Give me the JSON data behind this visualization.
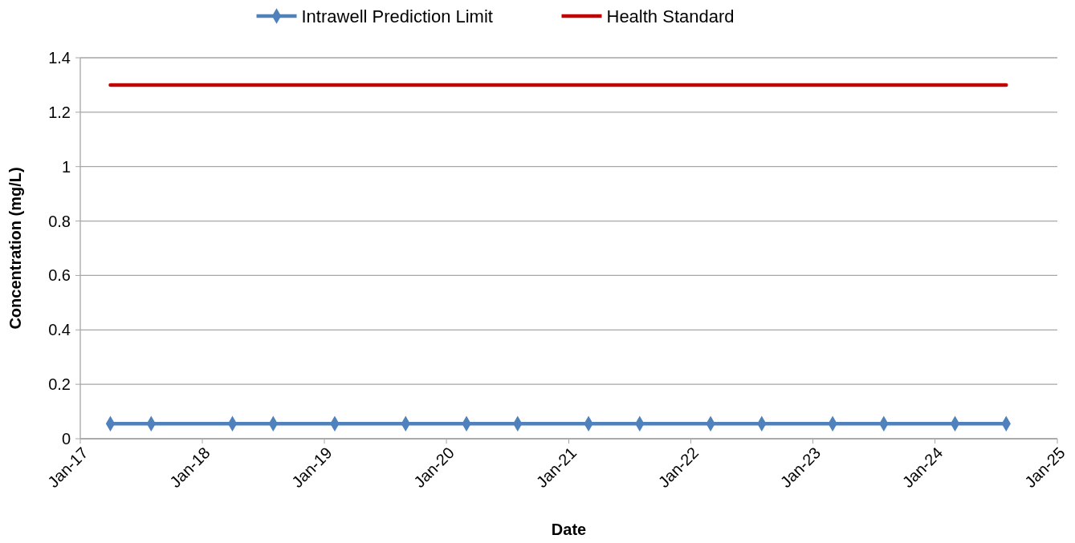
{
  "chart_data": {
    "type": "line",
    "xlabel": "Date",
    "ylabel": "Concentration (mg/L)",
    "xlim": [
      "2017-01-01",
      "2025-01-01"
    ],
    "xticks": [
      {
        "value": "2017-01",
        "label": "Jan-17"
      },
      {
        "value": "2018-01",
        "label": "Jan-18"
      },
      {
        "value": "2019-01",
        "label": "Jan-19"
      },
      {
        "value": "2020-01",
        "label": "Jan-20"
      },
      {
        "value": "2021-01",
        "label": "Jan-21"
      },
      {
        "value": "2022-01",
        "label": "Jan-22"
      },
      {
        "value": "2023-01",
        "label": "Jan-23"
      },
      {
        "value": "2024-01",
        "label": "Jan-24"
      },
      {
        "value": "2025-01",
        "label": "Jan-25"
      }
    ],
    "ylim": [
      0,
      1.4
    ],
    "yticks": [
      0,
      0.2,
      0.4,
      0.6,
      0.8,
      1,
      1.2,
      1.4
    ],
    "grid": "y",
    "legend": "top",
    "marker": "diamond",
    "series": [
      {
        "name": "Intrawell Prediction Limit",
        "color": "#4f81bd",
        "x": [
          "2017-04",
          "2017-08",
          "2018-04",
          "2018-08",
          "2019-02",
          "2019-09",
          "2020-03",
          "2020-08",
          "2021-03",
          "2021-08",
          "2022-03",
          "2022-08",
          "2023-03",
          "2023-08",
          "2024-03",
          "2024-08"
        ],
        "values": [
          0.055,
          0.055,
          0.055,
          0.055,
          0.055,
          0.055,
          0.055,
          0.055,
          0.055,
          0.055,
          0.055,
          0.055,
          0.055,
          0.055,
          0.055,
          0.055
        ]
      },
      {
        "name": "Health Standard",
        "color": "#c00000",
        "marker": "none",
        "x": [
          "2017-04",
          "2024-08"
        ],
        "values": [
          1.3,
          1.3
        ]
      }
    ]
  }
}
